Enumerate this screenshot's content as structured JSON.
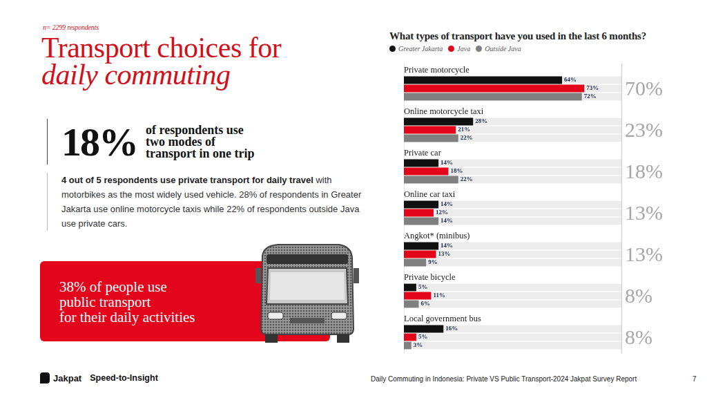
{
  "page": {
    "sample": "n= 2299 respondents",
    "heading": [
      "Transport choices for",
      "daily commuting"
    ],
    "stat": {
      "value": "18%",
      "text": [
        "of respondents use",
        "two modes of",
        "transport in one trip"
      ]
    },
    "paragraph": {
      "bold": "4 out of 5 respondents use private transport for daily travel",
      "text": "with motorbikes as the most widely used vehicle. 28% of respondents in Greater Jakarta use online motorcycle taxis while 22% of respondents outside Java use private cars."
    },
    "highlight": [
      "38% of people use",
      "public transport",
      "for their daily activities"
    ],
    "footer": {
      "brand": "Jakpat",
      "tagline": "Speed-to-Insight",
      "source": "Daily Commuting in Indonesia: Private VS Public Transport-2024 Jakpat Survey Report",
      "page": "7"
    }
  },
  "chart_data": {
    "type": "bar",
    "orientation": "horizontal",
    "title": "What types of transport have you used in the last 6 months?",
    "categories": [
      "Private motorcycle",
      "Online motorcycle taxi",
      "Private car",
      "Online car taxi",
      "Angkot* (minibus)",
      "Private bicycle",
      "Local government bus"
    ],
    "series": [
      {
        "name": "Greater Jakarta",
        "color": "#111111",
        "values": [
          64,
          28,
          14,
          14,
          14,
          5,
          16
        ],
        "value_labels": [
          "64%",
          "28%",
          "14%",
          "14%",
          "14%",
          "5%",
          "16%"
        ]
      },
      {
        "name": "Java",
        "color": "#e3051b",
        "values": [
          73,
          21,
          18,
          12,
          13,
          11,
          5
        ],
        "value_labels": [
          "73%",
          "21%",
          "18%",
          "12%",
          "13%",
          "11%",
          "5%"
        ]
      },
      {
        "name": "Outside Java",
        "color": "#808080",
        "values": [
          72,
          22,
          22,
          14,
          9,
          6,
          3
        ],
        "value_labels": [
          "72%",
          "22%",
          "22%",
          "14%",
          "9%",
          "6%",
          "3%"
        ]
      }
    ],
    "totals": {
      "values": [
        70,
        23,
        18,
        13,
        13,
        8,
        8
      ],
      "value_labels": [
        "70%",
        "23%",
        "18%",
        "13%",
        "13%",
        "8%",
        "8%"
      ]
    },
    "xlim": [
      0,
      88
    ],
    "grid": false,
    "tick_labels": false,
    "legend": "top",
    "data_labels": true
  }
}
